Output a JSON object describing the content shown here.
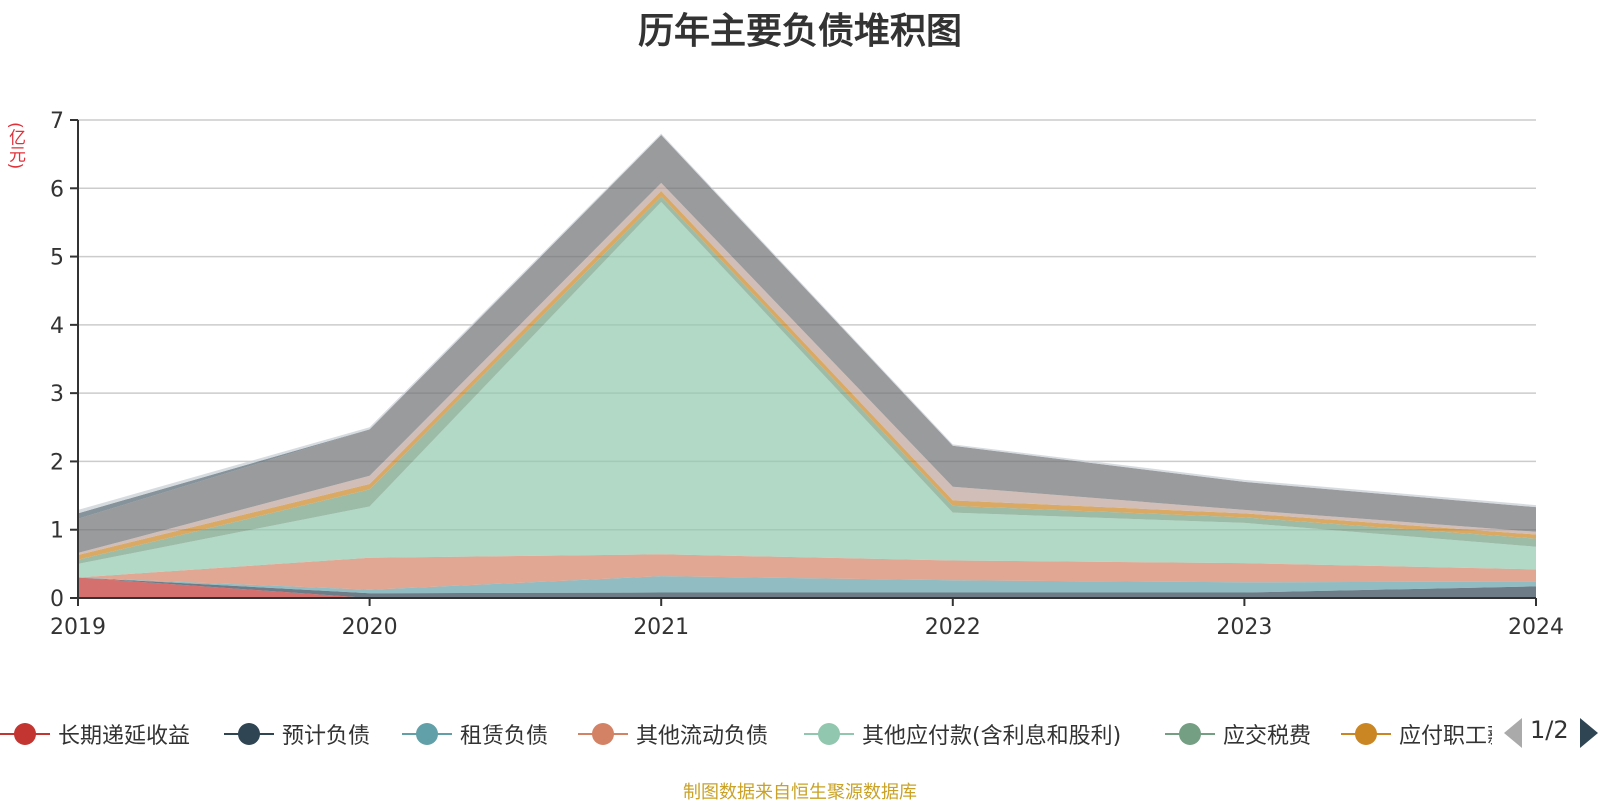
{
  "chart_data": {
    "type": "area",
    "title": "历年主要负债堆积图",
    "y_unit": "(亿元)",
    "ylim": [
      0,
      7
    ],
    "yticks": [
      "0",
      "1",
      "2",
      "3",
      "4",
      "5",
      "6",
      "7"
    ],
    "categories": [
      "2019",
      "2020",
      "2021",
      "2022",
      "2023",
      "2024"
    ],
    "grid": true,
    "stacked": true,
    "series": [
      {
        "name": "长期递延收益",
        "color": "#c23531",
        "values": [
          0.3,
          0.0,
          0.0,
          0.0,
          0.0,
          0.0
        ]
      },
      {
        "name": "预计负债",
        "color": "#2f4554",
        "values": [
          0.0,
          0.07,
          0.08,
          0.08,
          0.08,
          0.17
        ]
      },
      {
        "name": "租赁负债",
        "color": "#61a0a8",
        "values": [
          0.0,
          0.05,
          0.24,
          0.18,
          0.15,
          0.07
        ]
      },
      {
        "name": "其他流动负债",
        "color": "#d48265",
        "values": [
          0.0,
          0.47,
          0.32,
          0.29,
          0.28,
          0.18
        ]
      },
      {
        "name": "其他应付款(含利息和股利)",
        "color": "#91c7ae",
        "values": [
          0.2,
          0.75,
          5.16,
          0.7,
          0.59,
          0.33
        ]
      },
      {
        "name": "应交税费",
        "color": "#749f83",
        "values": [
          0.06,
          0.25,
          0.08,
          0.1,
          0.08,
          0.12
        ]
      },
      {
        "name": "应付职工薪酬",
        "color": "#ca8622",
        "values": [
          0.07,
          0.08,
          0.08,
          0.08,
          0.06,
          0.06
        ]
      },
      {
        "name": "",
        "color": "#bda29a",
        "values": [
          0.03,
          0.12,
          0.12,
          0.2,
          0.05,
          0.04
        ]
      },
      {
        "name": "",
        "color": "#6e7074",
        "values": [
          0.5,
          0.68,
          0.7,
          0.6,
          0.41,
          0.36
        ]
      },
      {
        "name": "",
        "color": "#546570",
        "values": [
          0.08,
          0.0,
          0.0,
          0.0,
          0.0,
          0.0
        ]
      },
      {
        "name": "",
        "color": "#c4ccd3",
        "values": [
          0.05,
          0.03,
          0.02,
          0.02,
          0.03,
          0.03
        ]
      }
    ]
  },
  "legend": {
    "items": [
      {
        "label": "长期递延收益",
        "color": "#c23531"
      },
      {
        "label": "预计负债",
        "color": "#2f4554"
      },
      {
        "label": "租赁负债",
        "color": "#61a0a8"
      },
      {
        "label": "其他流动负债",
        "color": "#d48265"
      },
      {
        "label": "其他应付款(含利息和股利)",
        "color": "#91c7ae"
      },
      {
        "label": "应交税费",
        "color": "#749f83"
      },
      {
        "label": "应付职工薪酬",
        "color": "#ca8622"
      }
    ],
    "page_text": "1/2"
  },
  "source": "制图数据来自恒生聚源数据库"
}
